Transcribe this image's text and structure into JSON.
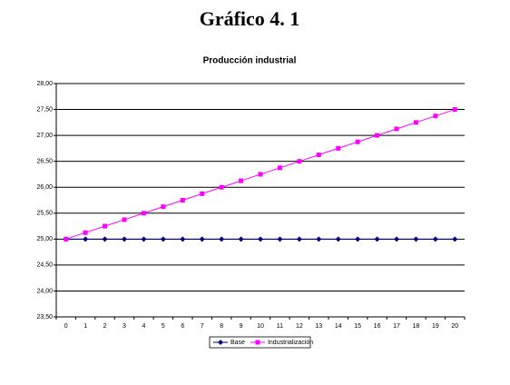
{
  "page_title": "Gráfico 4. 1",
  "chart_data": {
    "type": "line",
    "title": "Producción industrial",
    "categories": [
      "0",
      "1",
      "2",
      "3",
      "4",
      "5",
      "6",
      "7",
      "8",
      "9",
      "10",
      "11",
      "12",
      "13",
      "14",
      "15",
      "16",
      "17",
      "18",
      "19",
      "20"
    ],
    "series": [
      {
        "name": "Base",
        "color": "#000080",
        "marker": "diamond",
        "values": [
          25,
          25,
          25,
          25,
          25,
          25,
          25,
          25,
          25,
          25,
          25,
          25,
          25,
          25,
          25,
          25,
          25,
          25,
          25,
          25,
          25
        ]
      },
      {
        "name": "Industrialización",
        "color": "#ff00ff",
        "marker": "square",
        "values": [
          25,
          25.125,
          25.25,
          25.375,
          25.5,
          25.625,
          25.75,
          25.875,
          26,
          26.125,
          26.25,
          26.375,
          26.5,
          26.625,
          26.75,
          26.875,
          27,
          27.125,
          27.25,
          27.375,
          27.5
        ]
      }
    ],
    "ylim": [
      23.5,
      28
    ],
    "yticks": [
      {
        "value": 23.5,
        "label": "23,50"
      },
      {
        "value": 24,
        "label": "24,00"
      },
      {
        "value": 24.5,
        "label": "24,50"
      },
      {
        "value": 25,
        "label": "25,00"
      },
      {
        "value": 25.5,
        "label": "25,50"
      },
      {
        "value": 26,
        "label": "26,00"
      },
      {
        "value": 26.5,
        "label": "26,50"
      },
      {
        "value": 27,
        "label": "27,00"
      },
      {
        "value": 27.5,
        "label": "27,50"
      },
      {
        "value": 28,
        "label": "28,00"
      }
    ],
    "grid": true,
    "legend": "bottom"
  }
}
